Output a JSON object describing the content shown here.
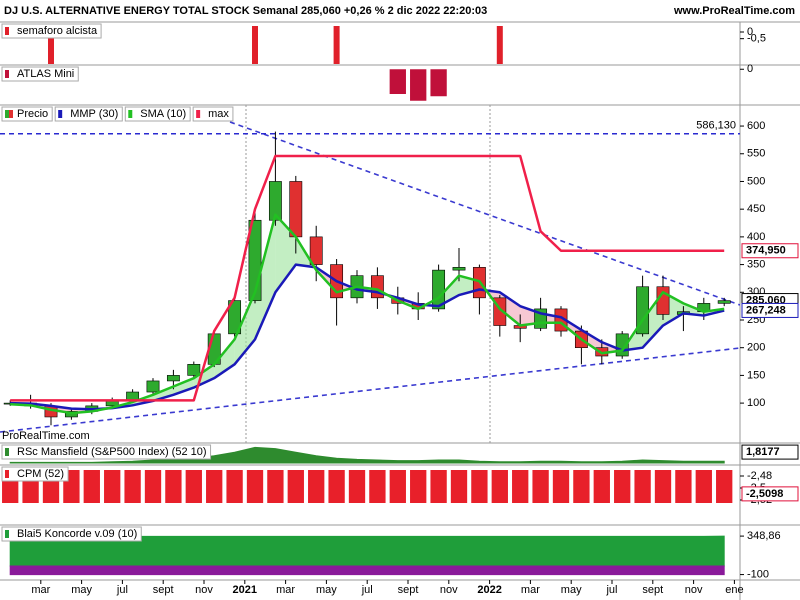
{
  "header": {
    "title": "DJ U.S. ALTERNATIVE ENERGY TOTAL STOCK Semanal 285,060 +0,26 % 2 dic 2022 22:20:03",
    "site": "www.ProRealTime.com"
  },
  "watermark": "ProRealTime.com",
  "chart_data": [
    {
      "type": "signal",
      "title": "semaforo alcista",
      "color": "#e0202a",
      "ylim": [
        -2.4,
        0.6
      ],
      "yticks": [
        0,
        {
          "value": -0.5,
          "label": "-0,5"
        }
      ],
      "values": [
        0,
        0,
        1,
        0,
        0,
        0,
        0,
        0,
        0,
        0,
        0,
        0,
        1,
        0,
        0,
        0,
        1,
        0,
        0,
        0,
        0,
        0,
        0,
        0,
        1,
        0,
        0,
        0,
        0,
        0,
        0,
        0,
        0,
        0,
        0,
        0,
        null
      ]
    },
    {
      "type": "bar",
      "title": "ATLAS Mini",
      "color": "#c0103a",
      "ylim": [
        -1.5,
        0.1
      ],
      "yticks": [
        0
      ],
      "values": [
        0,
        0,
        0,
        0,
        0,
        0,
        0,
        0,
        0,
        0,
        0,
        0,
        0,
        0,
        0,
        0,
        0,
        0,
        0,
        -1.1,
        -1.4,
        -1.2,
        0,
        0,
        0,
        0,
        0,
        0,
        0,
        0,
        0,
        0,
        0,
        0,
        0,
        0,
        null
      ]
    },
    {
      "type": "candlestick",
      "name": "Precio",
      "up_color": "#2eaa2e",
      "down_color": "#e03030",
      "fill_up": "#9be39b",
      "fill_down": "#f2a3b5",
      "categories": [
        null,
        null,
        "mar",
        null,
        "may",
        null,
        "jul",
        null,
        "sept",
        null,
        "nov",
        null,
        "2021",
        null,
        "mar",
        null,
        "may",
        null,
        "jul",
        null,
        "sept",
        null,
        "nov",
        null,
        "2022",
        null,
        "mar",
        null,
        "may",
        null,
        "jul",
        null,
        "sept",
        null,
        "nov",
        null,
        "ene"
      ],
      "open": [
        100,
        100,
        95,
        75,
        85,
        95,
        105,
        120,
        140,
        150,
        170,
        225,
        285,
        430,
        500,
        400,
        350,
        290,
        330,
        290,
        280,
        270,
        340,
        345,
        290,
        240,
        235,
        270,
        230,
        200,
        185,
        225,
        310,
        260,
        265,
        280,
        null
      ],
      "high": [
        105,
        115,
        100,
        90,
        100,
        110,
        125,
        145,
        160,
        175,
        230,
        290,
        450,
        590,
        510,
        420,
        360,
        340,
        345,
        310,
        300,
        350,
        380,
        350,
        295,
        260,
        290,
        275,
        240,
        215,
        230,
        330,
        330,
        275,
        290,
        290,
        null
      ],
      "low": [
        95,
        90,
        60,
        70,
        80,
        90,
        100,
        115,
        125,
        145,
        165,
        220,
        280,
        420,
        370,
        320,
        240,
        280,
        270,
        260,
        250,
        265,
        320,
        260,
        220,
        210,
        230,
        220,
        170,
        170,
        180,
        220,
        250,
        230,
        250,
        275,
        null
      ],
      "close": [
        100,
        95,
        75,
        85,
        95,
        105,
        120,
        140,
        150,
        170,
        225,
        285,
        430,
        500,
        400,
        350,
        290,
        330,
        290,
        280,
        270,
        340,
        345,
        290,
        240,
        235,
        270,
        230,
        200,
        185,
        225,
        310,
        260,
        265,
        280,
        285,
        null
      ],
      "series": [
        {
          "name": "MMP (30)",
          "color": "#1a1ab8",
          "values": [
            100,
            99,
            95,
            90,
            89,
            91,
            96,
            104,
            115,
            128,
            145,
            170,
            215,
            300,
            350,
            345,
            320,
            305,
            300,
            290,
            278,
            275,
            295,
            305,
            300,
            275,
            262,
            255,
            232,
            210,
            195,
            200,
            240,
            262,
            258,
            267,
            null
          ]
        },
        {
          "name": "SMA (10)",
          "color": "#22c022",
          "values": [
            98,
            96,
            88,
            82,
            85,
            92,
            102,
            115,
            130,
            145,
            170,
            215,
            300,
            440,
            400,
            340,
            300,
            310,
            305,
            285,
            270,
            290,
            330,
            320,
            270,
            240,
            245,
            245,
            215,
            190,
            195,
            250,
            300,
            280,
            265,
            270,
            null
          ]
        },
        {
          "name": "max",
          "color": "#f0204a",
          "values": [
            105,
            105,
            105,
            105,
            105,
            105,
            105,
            105,
            105,
            105,
            230,
            290,
            450,
            546,
            546,
            546,
            546,
            546,
            546,
            546,
            546,
            546,
            546,
            546,
            546,
            546,
            410,
            374.95,
            374.95,
            374.95,
            374.95,
            374.95,
            374.95,
            374.95,
            374.95,
            374.95,
            null
          ]
        }
      ],
      "ylim": [
        28,
        638
      ],
      "yticks": [
        100,
        150,
        200,
        250,
        300,
        350,
        400,
        450,
        500,
        550,
        600
      ],
      "hlines": [
        {
          "value": 586.13,
          "label": "586,130",
          "color": "#2a2ad0"
        }
      ],
      "markers": [
        {
          "value": 374.95,
          "label": "374,950",
          "color": "#e0103a"
        },
        {
          "value": 285.06,
          "label": "285,060",
          "color": "#000000"
        },
        {
          "value": 267.248,
          "label": "267,248",
          "color": "#1a1ab8"
        }
      ]
    },
    {
      "type": "area",
      "title": "RSc Mansfield (S&P500 Index) (52 10)",
      "color": "#2e8b2e",
      "ylim": [
        0,
        3
      ],
      "series": [
        {
          "color": "#2e8b2e",
          "values": [
            0.1,
            0.1,
            0.1,
            0.1,
            0.1,
            0.2,
            0.3,
            0.5,
            0.6,
            0.8,
            1.2,
            1.8,
            2.6,
            2.4,
            1.8,
            1.2,
            0.8,
            0.6,
            0.5,
            0.4,
            0.4,
            0.5,
            0.5,
            0.3,
            0.2,
            0.2,
            0.3,
            0.3,
            0.2,
            0.2,
            0.3,
            0.5,
            0.4,
            0.3,
            0.3,
            0.3,
            null
          ]
        }
      ],
      "markers": [
        {
          "value": 1.8177,
          "label": "1,8177",
          "color": "#000000"
        }
      ]
    },
    {
      "type": "bar",
      "title": "CPM (52)",
      "color": "#e8202a",
      "ylim": [
        -2.525,
        -2.465
      ],
      "yticks": [
        {
          "value": -2.48,
          "label": "-2,48"
        },
        {
          "value": -2.5,
          "label": "-2,5"
        },
        {
          "value": -2.52,
          "label": "-2,52"
        }
      ],
      "values": [
        -2.47,
        -2.47,
        -2.47,
        -2.47,
        -2.47,
        -2.47,
        -2.47,
        -2.47,
        -2.47,
        -2.47,
        -2.47,
        -2.47,
        -2.47,
        -2.47,
        -2.47,
        -2.47,
        -2.47,
        -2.47,
        -2.47,
        -2.47,
        -2.47,
        -2.47,
        -2.47,
        -2.47,
        -2.47,
        -2.47,
        -2.47,
        -2.47,
        -2.47,
        -2.47,
        -2.47,
        -2.47,
        -2.47,
        -2.47,
        -2.47,
        -2.47,
        null
      ],
      "markers": [
        {
          "value": -2.5098,
          "label": "-2,5098",
          "color": "#e0103a"
        }
      ]
    },
    {
      "type": "area",
      "title": "Blai5 Koncorde v.09 (10)",
      "color": "#1f9e3a",
      "ylim": [
        -140,
        420
      ],
      "yticks": [
        {
          "value": 348.86,
          "label": "348,86"
        },
        -100
      ],
      "series": [
        {
          "color": "#1f9e3a",
          "values": [
            345,
            345,
            345,
            345,
            345,
            345,
            345,
            345,
            345,
            345,
            345,
            345,
            345,
            345,
            345,
            345,
            345,
            345,
            345,
            345,
            345,
            345,
            345,
            345,
            345,
            345,
            345,
            345,
            345,
            345,
            345,
            345,
            345,
            345,
            345,
            348.86,
            null
          ]
        },
        {
          "color": "#8a1a9a",
          "values": [
            -100,
            -100,
            -100,
            -100,
            -100,
            -100,
            -100,
            -100,
            -100,
            -100,
            -100,
            -100,
            -100,
            -100,
            -100,
            -100,
            -100,
            -100,
            -100,
            -100,
            -100,
            -100,
            -100,
            -100,
            -100,
            -100,
            -100,
            -100,
            -100,
            -100,
            -100,
            -100,
            -100,
            -100,
            -100,
            -100,
            null
          ]
        }
      ]
    }
  ]
}
